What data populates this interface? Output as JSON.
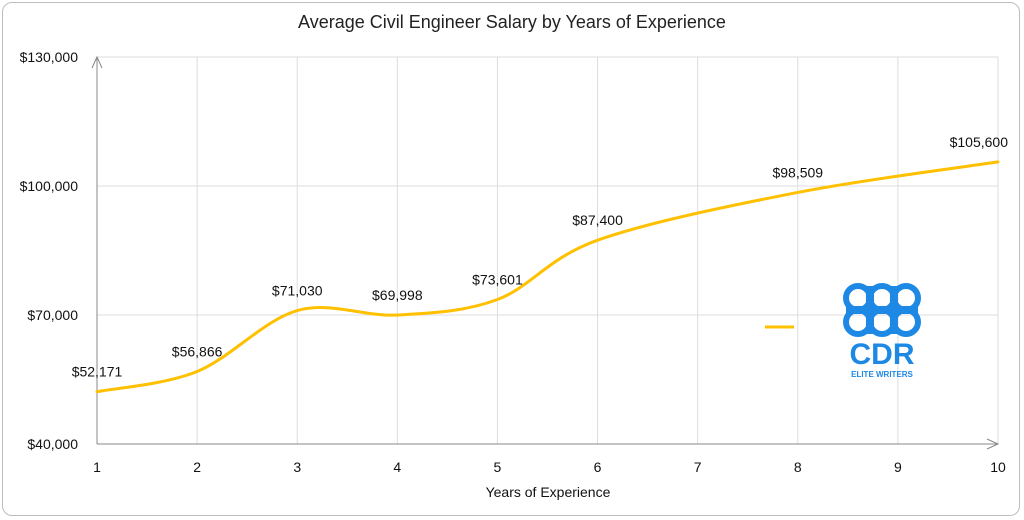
{
  "chart_data": {
    "type": "line",
    "title": "Average Civil Engineer Salary by Years of Experience",
    "xlabel": "Years of Experience",
    "ylabel": "",
    "x": [
      1,
      2,
      3,
      4,
      5,
      6,
      8,
      10
    ],
    "x_ticks": [
      "1",
      "2",
      "3",
      "4",
      "5",
      "6",
      "7",
      "8",
      "9",
      "10"
    ],
    "xlim": [
      1,
      10
    ],
    "ylim": [
      40000,
      130000
    ],
    "y_ticks": [
      "$40,000",
      "$70,000",
      "$100,000",
      "$130,000"
    ],
    "y_tick_values": [
      40000,
      70000,
      100000,
      130000
    ],
    "series": [
      {
        "values": [
          52171,
          56866,
          71030,
          69998,
          73601,
          87400,
          98509,
          105600
        ],
        "data_labels": [
          "$52,171",
          "$56,866",
          "$71,030",
          "$69,998",
          "$73,601",
          "$87,400",
          "$98,509",
          "$105,600"
        ],
        "color": "#FFC000",
        "smooth": true
      }
    ],
    "grid": true,
    "legend": "right",
    "legend_color": "#FFC000"
  },
  "logo": {
    "text": "CDR",
    "subtext": "ELITE WRITERS",
    "color": "#1E88E5"
  }
}
